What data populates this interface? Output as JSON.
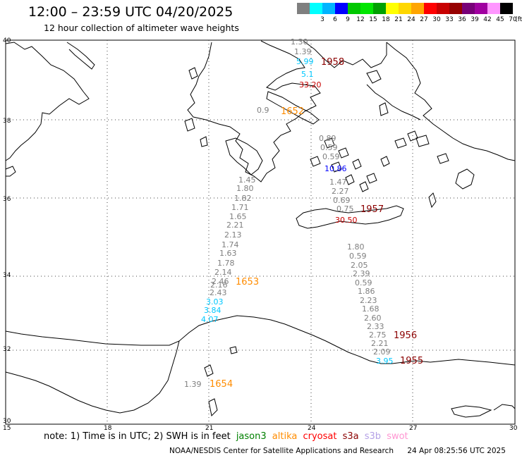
{
  "header": {
    "title": "12:00 – 23:59 UTC 04/20/2025",
    "subtitle": "12 hour collection of altimeter wave heights"
  },
  "legend": {
    "unit": "(ft)",
    "items": [
      {
        "label": "",
        "color": "#7f7f7f"
      },
      {
        "label": "3",
        "color": "#00ffff"
      },
      {
        "label": "6",
        "color": "#00b4ff"
      },
      {
        "label": "9",
        "color": "#0000ff"
      },
      {
        "label": "12",
        "color": "#00c800"
      },
      {
        "label": "15",
        "color": "#00e600"
      },
      {
        "label": "18",
        "color": "#00a000"
      },
      {
        "label": "21",
        "color": "#ffff00"
      },
      {
        "label": "24",
        "color": "#ffd700"
      },
      {
        "label": "27",
        "color": "#ffa500"
      },
      {
        "label": "30",
        "color": "#ff0000"
      },
      {
        "label": "33",
        "color": "#c80000"
      },
      {
        "label": "36",
        "color": "#960000"
      },
      {
        "label": "39",
        "color": "#780078"
      },
      {
        "label": "42",
        "color": "#a000a0"
      },
      {
        "label": "45",
        "color": "#ff96ff"
      },
      {
        "label": "70",
        "color": "#000000"
      }
    ]
  },
  "axes": {
    "lon_ticks": [
      "15",
      "18",
      "21",
      "24",
      "27",
      "30"
    ],
    "lat_ticks": [
      "30",
      "32",
      "34",
      "36",
      "38",
      "40"
    ]
  },
  "passes": [
    {
      "label": "1958",
      "color": "#8b0000"
    },
    {
      "label": "1652",
      "color": "#ff8c00"
    },
    {
      "label": "1957",
      "color": "#8b0000"
    },
    {
      "label": "1653",
      "color": "#ff8c00"
    },
    {
      "label": "1956",
      "color": "#8b0000"
    },
    {
      "label": "1955",
      "color": "#8b0000"
    },
    {
      "label": "1654",
      "color": "#ff8c00"
    }
  ],
  "observations": [
    {
      "text": "1.30",
      "color": "#7f7f7f"
    },
    {
      "text": "1.39",
      "color": "#7f7f7f"
    },
    {
      "text": "5.99",
      "color": "#00c8ff"
    },
    {
      "text": "5.1",
      "color": "#00c8ff"
    },
    {
      "text": "33.20",
      "color": "#c80000"
    },
    {
      "text": "0.9",
      "color": "#7f7f7f"
    },
    {
      "text": "0.89",
      "color": "#7f7f7f"
    },
    {
      "text": "0.59",
      "color": "#7f7f7f"
    },
    {
      "text": "0.59",
      "color": "#7f7f7f"
    },
    {
      "text": "10.86",
      "color": "#0000ff"
    },
    {
      "text": "1.47",
      "color": "#7f7f7f"
    },
    {
      "text": "2.27",
      "color": "#7f7f7f"
    },
    {
      "text": "0.69",
      "color": "#7f7f7f"
    },
    {
      "text": "0.75",
      "color": "#7f7f7f"
    },
    {
      "text": "30.50",
      "color": "#c80000"
    },
    {
      "text": "1.80",
      "color": "#7f7f7f"
    },
    {
      "text": "0.59",
      "color": "#7f7f7f"
    },
    {
      "text": "2.05",
      "color": "#7f7f7f"
    },
    {
      "text": "2.39",
      "color": "#7f7f7f"
    },
    {
      "text": "0.59",
      "color": "#7f7f7f"
    },
    {
      "text": "1.86",
      "color": "#7f7f7f"
    },
    {
      "text": "2.23",
      "color": "#7f7f7f"
    },
    {
      "text": "1.68",
      "color": "#7f7f7f"
    },
    {
      "text": "2.60",
      "color": "#7f7f7f"
    },
    {
      "text": "2.33",
      "color": "#7f7f7f"
    },
    {
      "text": "2.75",
      "color": "#7f7f7f"
    },
    {
      "text": "2.21",
      "color": "#7f7f7f"
    },
    {
      "text": "2.09",
      "color": "#7f7f7f"
    },
    {
      "text": "3.95",
      "color": "#00c8ff"
    },
    {
      "text": "1.45",
      "color": "#7f7f7f"
    },
    {
      "text": "1.80",
      "color": "#7f7f7f"
    },
    {
      "text": "1.82",
      "color": "#7f7f7f"
    },
    {
      "text": "1.71",
      "color": "#7f7f7f"
    },
    {
      "text": "1.65",
      "color": "#7f7f7f"
    },
    {
      "text": "2.21",
      "color": "#7f7f7f"
    },
    {
      "text": "2.13",
      "color": "#7f7f7f"
    },
    {
      "text": "1.74",
      "color": "#7f7f7f"
    },
    {
      "text": "1.63",
      "color": "#7f7f7f"
    },
    {
      "text": "1.78",
      "color": "#7f7f7f"
    },
    {
      "text": "2.14",
      "color": "#7f7f7f"
    },
    {
      "text": "2.46",
      "color": "#7f7f7f"
    },
    {
      "text": "2.16",
      "color": "#7f7f7f"
    },
    {
      "text": "2.43",
      "color": "#7f7f7f"
    },
    {
      "text": "3.03",
      "color": "#00c8ff"
    },
    {
      "text": "3.84",
      "color": "#00c8ff"
    },
    {
      "text": "4.07",
      "color": "#00c8ff"
    },
    {
      "text": "1.39",
      "color": "#7f7f7f"
    }
  ],
  "note": {
    "text": "note:  1) Time is in UTC; 2) SWH is in feet",
    "satellites": [
      {
        "name": "jason3",
        "color": "#008000"
      },
      {
        "name": "altika",
        "color": "#ff8c00"
      },
      {
        "name": "cryosat",
        "color": "#ff0000"
      },
      {
        "name": "s3a",
        "color": "#8b0000"
      },
      {
        "name": "s3b",
        "color": "#b4a0e6"
      },
      {
        "name": "swot",
        "color": "#ff96d2"
      }
    ]
  },
  "footer": {
    "credit": "NOAA/NESDIS Center for Satellite Applications and Research",
    "timestamp": "24 Apr 08:25:56 UTC 2025"
  }
}
